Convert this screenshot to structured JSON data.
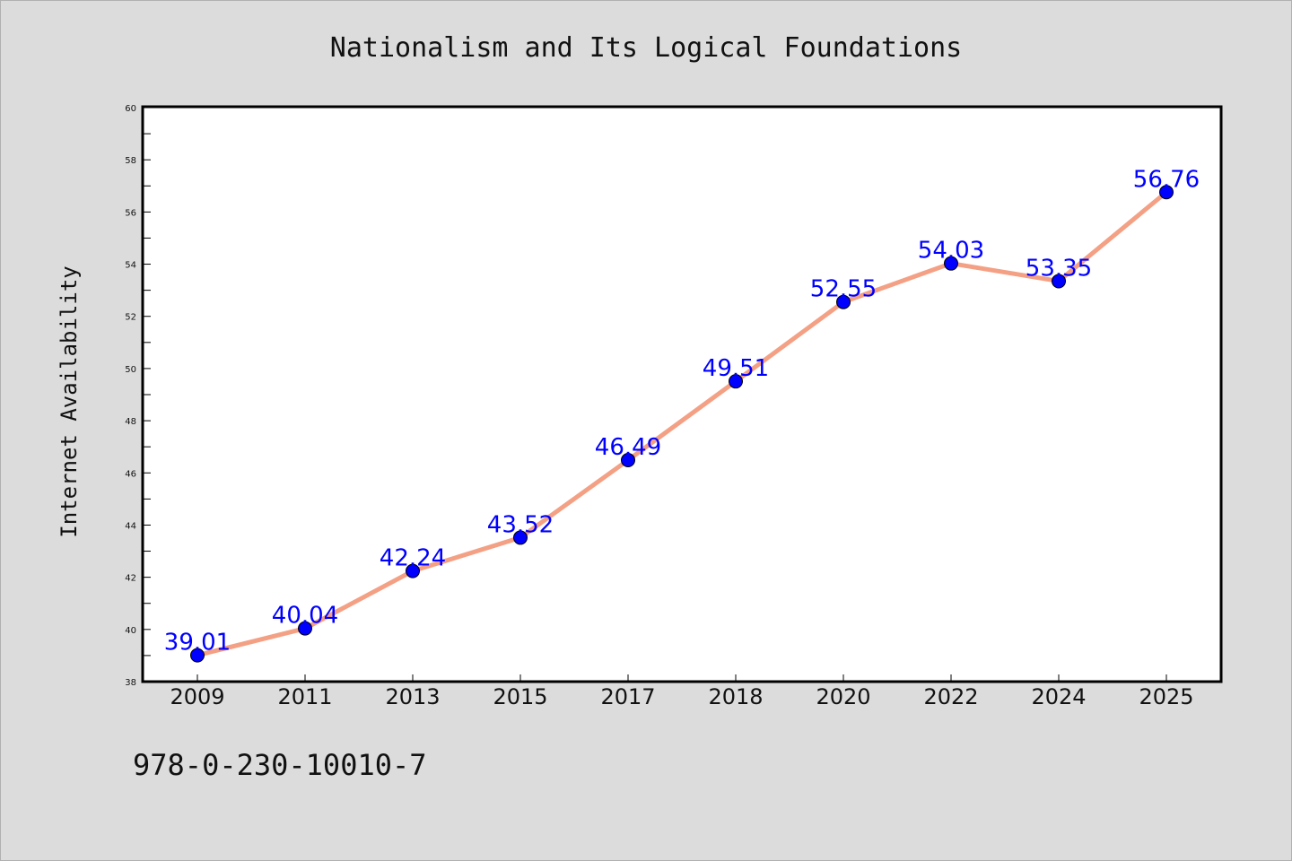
{
  "chart_data": {
    "type": "line",
    "title": "Nationalism and Its Logical Foundations",
    "xlabel": "",
    "ylabel": "Internet Availability",
    "categories": [
      "2009",
      "2011",
      "2013",
      "2015",
      "2017",
      "2018",
      "2020",
      "2022",
      "2024",
      "2025"
    ],
    "series": [
      {
        "values": [
          39.01,
          40.04,
          42.24,
          43.52,
          46.49,
          49.51,
          52.55,
          54.03,
          53.35,
          56.76
        ],
        "labels": [
          "39.01",
          "40.04",
          "42.24",
          "43.52",
          "46.49",
          "49.51",
          "52.55",
          "54.03",
          "53.35",
          "56.76"
        ]
      }
    ],
    "ylim": [
      38,
      60
    ],
    "yticks": [
      "38",
      "40",
      "42",
      "44",
      "46",
      "48",
      "50",
      "52",
      "54",
      "56",
      "58",
      "60"
    ],
    "grid": false,
    "legend": "none",
    "line_color": "#f4a084",
    "marker_color": "#0000ff",
    "label_color": "#0000ff"
  },
  "footer": {
    "isbn": "978-0-230-10010-7"
  }
}
